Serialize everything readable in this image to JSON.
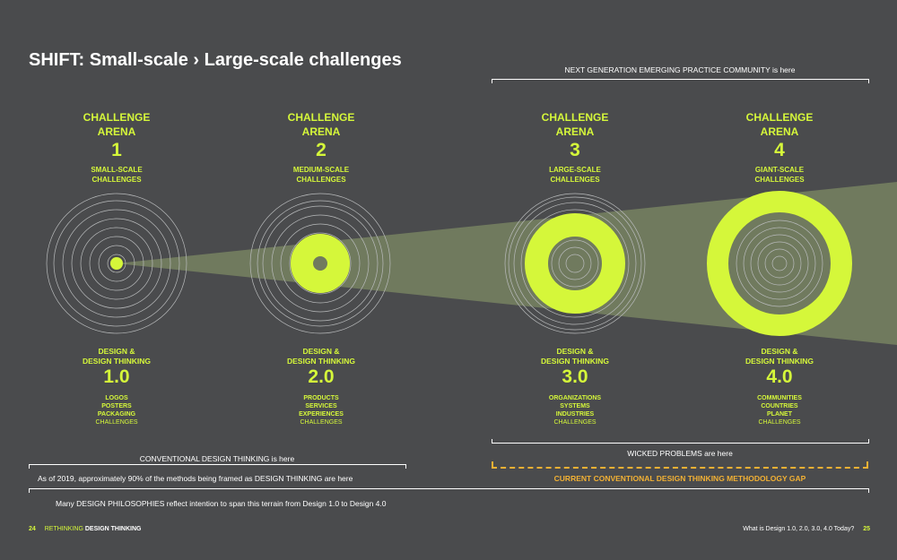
{
  "title": "SHIFT: Small-scale › Large-scale challenges",
  "top_note": "NEXT GENERATION EMERGING PRACTICE COMMUNITY is here",
  "arenas": [
    {
      "heading1": "CHALLENGE",
      "heading2": "ARENA",
      "number": "1",
      "scale1": "SMALL-SCALE",
      "scale2": "CHALLENGES"
    },
    {
      "heading1": "CHALLENGE",
      "heading2": "ARENA",
      "number": "2",
      "scale1": "MEDIUM-SCALE",
      "scale2": "CHALLENGES"
    },
    {
      "heading1": "CHALLENGE",
      "heading2": "ARENA",
      "number": "3",
      "scale1": "LARGE-SCALE",
      "scale2": "CHALLENGES"
    },
    {
      "heading1": "CHALLENGE",
      "heading2": "ARENA",
      "number": "4",
      "scale1": "GIANT-SCALE",
      "scale2": "CHALLENGES"
    }
  ],
  "designs": [
    {
      "heading1": "DESIGN &",
      "heading2": "DESIGN THINKING",
      "version": "1.0",
      "items": [
        "LOGOS",
        "POSTERS",
        "PACKAGING"
      ],
      "suffix": "CHALLENGES"
    },
    {
      "heading1": "DESIGN &",
      "heading2": "DESIGN THINKING",
      "version": "2.0",
      "items": [
        "PRODUCTS",
        "SERVICES",
        "EXPERIENCES"
      ],
      "suffix": "CHALLENGES"
    },
    {
      "heading1": "DESIGN &",
      "heading2": "DESIGN THINKING",
      "version": "3.0",
      "items": [
        "ORGANIZATIONS",
        "SYSTEMS",
        "INDUSTRIES"
      ],
      "suffix": "CHALLENGES"
    },
    {
      "heading1": "DESIGN &",
      "heading2": "DESIGN THINKING",
      "version": "4.0",
      "items": [
        "COMMUNITIES",
        "COUNTRIES",
        "PLANET"
      ],
      "suffix": "CHALLENGES"
    }
  ],
  "conventional_note": "CONVENTIONAL DESIGN THINKING is here",
  "wicked_note": "WICKED PROBLEMS are here",
  "methods_note": "As of 2019, approximately 90% of the methods being framed as DESIGN THINKING are here",
  "gap_label": "CURRENT CONVENTIONAL DESIGN THINKING METHODOLOGY GAP",
  "philosophies_note": "Many DESIGN PHILOSOPHIES reflect intention to span this terrain from Design 1.0 to Design 4.0",
  "footer": {
    "left_page": "24",
    "left_book": "RETHINKING",
    "left_book_bold": "DESIGN THINKING",
    "right_question": "What is Design 1.0, 2.0, 3.0, 4.0 Today?",
    "right_page": "25"
  },
  "colors": {
    "background": "#4a4b4d",
    "accent": "#d5f73a",
    "beam": "#707a5e",
    "gap": "#f2b134"
  }
}
